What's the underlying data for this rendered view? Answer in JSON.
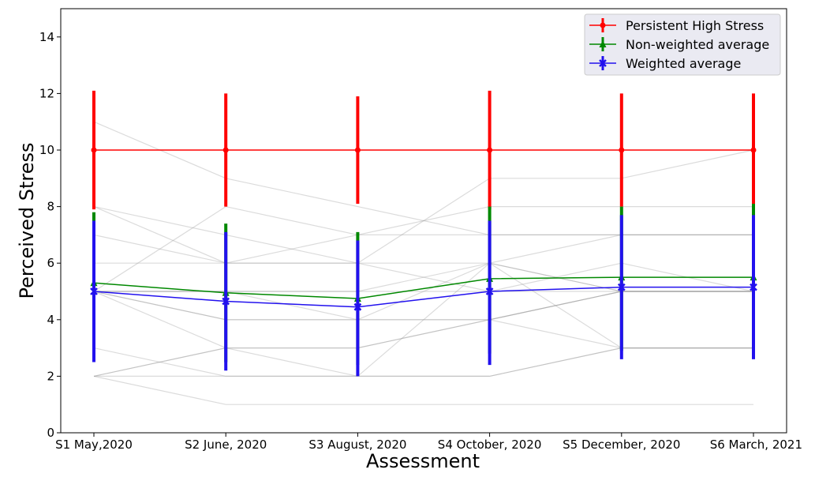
{
  "chart_data": {
    "type": "line",
    "xlabel": "Assessment",
    "ylabel": "Perceived Stress",
    "categories": [
      "S1 May,2020",
      "S2 June, 2020",
      "S3  August, 2020",
      "S4 October, 2020",
      "S5 December, 2020",
      "S6 March, 2021"
    ],
    "ylim": [
      0,
      15
    ],
    "yticks": [
      0,
      2,
      4,
      6,
      8,
      10,
      12,
      14
    ],
    "grid": false,
    "legend_position": "top-right",
    "series": [
      {
        "name": "Persistent High Stress",
        "color": "#ff0000",
        "marker": "circle",
        "values": [
          10,
          10,
          10,
          10,
          10,
          10
        ],
        "err_low": [
          7.9,
          8.0,
          8.1,
          7.9,
          8.0,
          7.9
        ],
        "err_high": [
          12.1,
          12.0,
          11.9,
          12.1,
          12.0,
          12.0
        ]
      },
      {
        "name": "Non-weighted average",
        "color": "#008800",
        "marker": "triangle",
        "values": [
          5.3,
          4.95,
          4.75,
          5.45,
          5.5,
          5.5
        ],
        "err_low": [
          2.8,
          2.5,
          2.4,
          2.8,
          2.9,
          2.8
        ],
        "err_high": [
          7.8,
          7.4,
          7.1,
          8.0,
          8.0,
          8.1
        ]
      },
      {
        "name": "Weighted average",
        "color": "#2211ee",
        "marker": "x",
        "values": [
          5.0,
          4.65,
          4.45,
          5.0,
          5.15,
          5.15
        ],
        "err_low": [
          2.5,
          2.2,
          2.0,
          2.4,
          2.6,
          2.6
        ],
        "err_high": [
          7.5,
          7.1,
          6.8,
          7.5,
          7.7,
          7.7
        ]
      }
    ],
    "individual_trajectories": [
      [
        11,
        9,
        8,
        7,
        7,
        7
      ],
      [
        8,
        7,
        6,
        5,
        5,
        5
      ],
      [
        8,
        6,
        7,
        8,
        8,
        8
      ],
      [
        7,
        6,
        6,
        6,
        7,
        7
      ],
      [
        6,
        6,
        6,
        9,
        9,
        10
      ],
      [
        5,
        8,
        7,
        7,
        7,
        7
      ],
      [
        5,
        5,
        5,
        5,
        6,
        5
      ],
      [
        5,
        4,
        4,
        4,
        3,
        3
      ],
      [
        5,
        3,
        2,
        6,
        3,
        3
      ],
      [
        3,
        2,
        2,
        2,
        3,
        3
      ],
      [
        2,
        3,
        3,
        4,
        5,
        5
      ],
      [
        2,
        2,
        2,
        2,
        3,
        3
      ],
      [
        2,
        1,
        1,
        1,
        1,
        1
      ],
      [
        5,
        4,
        4,
        6,
        5,
        5
      ],
      [
        5,
        5,
        4,
        4,
        5,
        5
      ],
      [
        2,
        3,
        3,
        4,
        5,
        5
      ],
      [
        5,
        5,
        5,
        6,
        5,
        5
      ]
    ]
  }
}
